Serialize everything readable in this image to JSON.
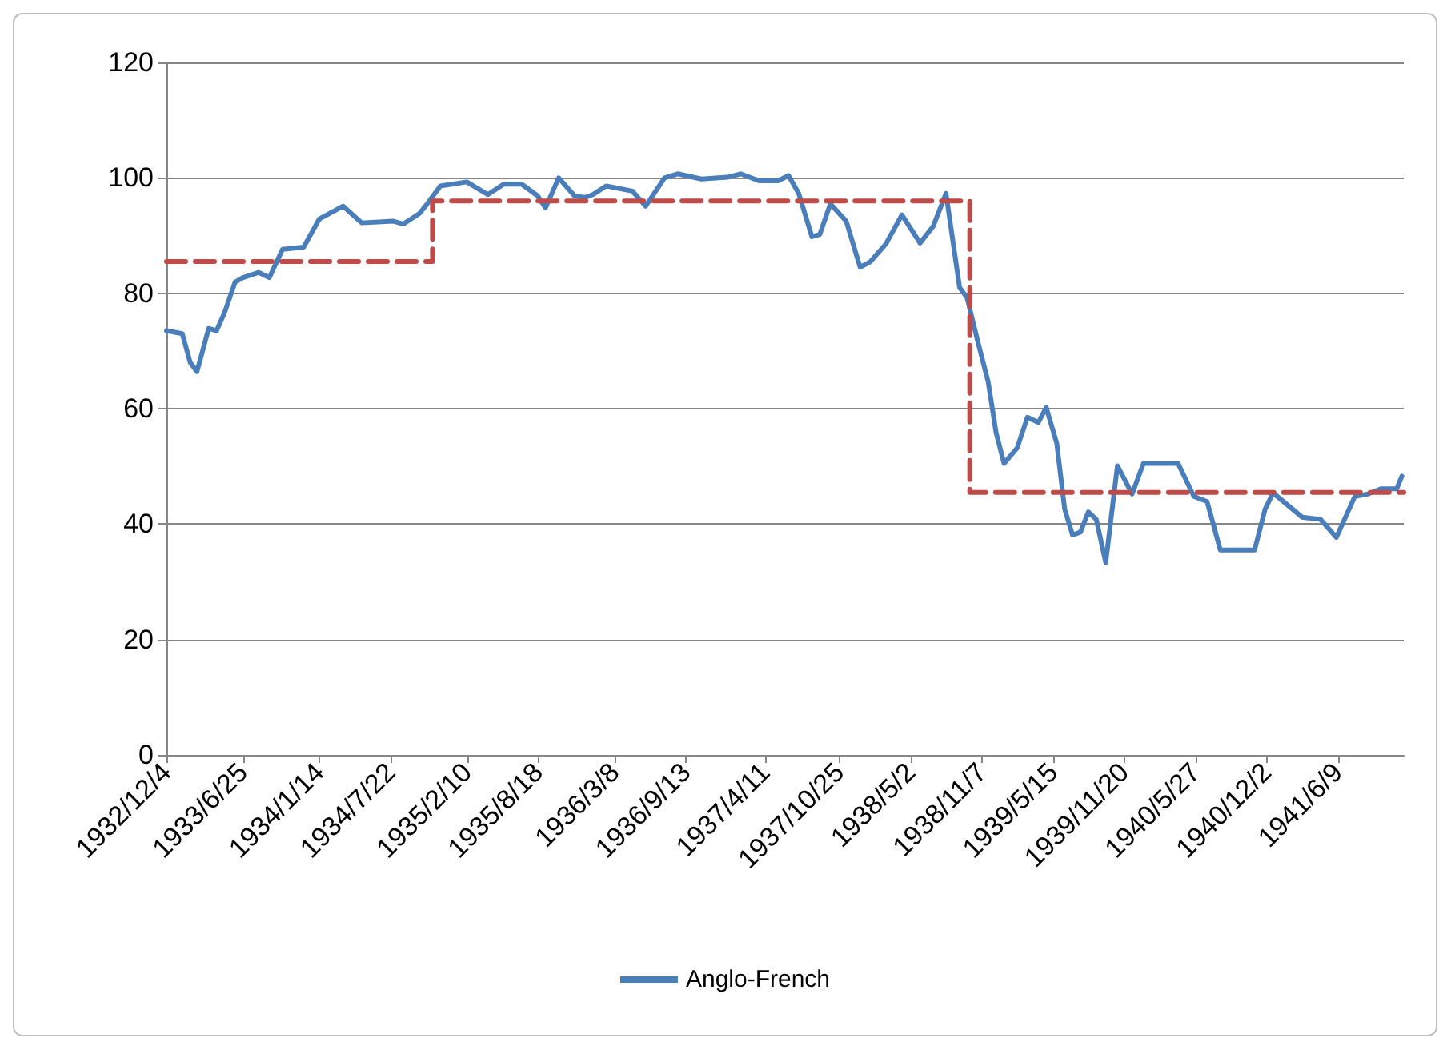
{
  "chart_data": {
    "type": "line",
    "x": [
      "1932-12-04",
      "1933-01-15",
      "1933-02-05",
      "1933-02-23",
      "1933-03-26",
      "1933-04-16",
      "1933-05-07",
      "1933-06-04",
      "1933-06-25",
      "1933-08-06",
      "1933-09-03",
      "1933-10-08",
      "1933-12-03",
      "1934-01-14",
      "1934-03-18",
      "1934-05-06",
      "1934-07-28",
      "1934-08-25",
      "1934-10-06",
      "1934-10-27",
      "1934-12-01",
      "1935-02-09",
      "1935-04-06",
      "1935-05-18",
      "1935-07-05",
      "1935-08-16",
      "1935-09-06",
      "1935-10-11",
      "1935-11-22",
      "1935-12-20",
      "1936-01-10",
      "1936-02-14",
      "1936-04-24",
      "1936-05-29",
      "1936-07-18",
      "1936-08-22",
      "1936-10-24",
      "1937-01-01",
      "1937-02-05",
      "1937-03-26",
      "1937-05-15",
      "1937-06-12",
      "1937-07-09",
      "1937-08-13",
      "1937-09-03",
      "1937-10-01",
      "1937-11-12",
      "1937-12-19",
      "1938-01-14",
      "1938-02-25",
      "1938-04-09",
      "1938-05-27",
      "1938-07-01",
      "1938-08-04",
      "1938-09-09",
      "1938-09-29",
      "1938-10-27",
      "1938-11-24",
      "1938-12-15",
      "1939-01-05",
      "1939-02-09",
      "1939-03-08",
      "1939-04-06",
      "1939-04-27",
      "1939-05-25",
      "1939-06-15",
      "1939-07-06",
      "1939-07-27",
      "1939-08-17",
      "1939-09-07",
      "1939-10-02",
      "1939-11-02",
      "1939-12-11",
      "1940-01-10",
      "1940-04-11",
      "1940-05-23",
      "1940-06-27",
      "1940-08-01",
      "1940-10-31",
      "1940-11-28",
      "1940-12-19",
      "1941-03-06",
      "1941-04-24",
      "1941-06-05",
      "1941-07-24",
      "1941-08-28",
      "1941-10-01",
      "1941-11-12",
      "1941-11-26"
    ],
    "series": [
      {
        "name": "Anglo-French",
        "color": "#4a7ebb",
        "line_style": "solid",
        "values": [
          73.5,
          73,
          68,
          66.4,
          73.9,
          73.5,
          76.6,
          81.9,
          82.7,
          83.6,
          82.7,
          87.6,
          88,
          92.9,
          95.1,
          92.2,
          92.5,
          92,
          93.8,
          95.5,
          98.6,
          99.3,
          97.1,
          98.9,
          98.9,
          96.9,
          94.8,
          100,
          96.9,
          96.6,
          97.1,
          98.6,
          97.7,
          95.1,
          100,
          100.7,
          99.8,
          100.1,
          100.7,
          99.5,
          99.5,
          100.4,
          97.3,
          89.8,
          90.2,
          95.5,
          92.5,
          84.5,
          85.4,
          88.5,
          93.6,
          88.7,
          91.6,
          97.3,
          81,
          79.2,
          71.7,
          64.6,
          55.8,
          50.5,
          53.2,
          58.5,
          57.6,
          60.2,
          54,
          42.6,
          38.1,
          38.6,
          42.1,
          40.8,
          33.3,
          50.1,
          45.2,
          50.5,
          50.5,
          44.8,
          43.9,
          35.5,
          35.5,
          42.6,
          45.4,
          41.2,
          40.8,
          37.7,
          44.8,
          45.2,
          46.1,
          46.1,
          48.3
        ]
      },
      {
        "type": "step",
        "color": "#be4b48",
        "line_style": "dashed",
        "x": [
          "1932-12-04",
          "1934-11-10",
          "1938-10-06",
          "1941-12-01"
        ],
        "values": [
          85.5,
          96,
          45.5,
          45.5
        ]
      }
    ],
    "xlim": [
      "1932-12-04",
      "1941-12-01"
    ],
    "xticks": [
      {
        "value": "1932-12-04",
        "label": "1932/12/4"
      },
      {
        "value": "1933-06-25",
        "label": "1933/6/25"
      },
      {
        "value": "1934-01-14",
        "label": "1934/1/14"
      },
      {
        "value": "1934-07-22",
        "label": "1934/7/22"
      },
      {
        "value": "1935-02-10",
        "label": "1935/2/10"
      },
      {
        "value": "1935-08-18",
        "label": "1935/8/18"
      },
      {
        "value": "1936-03-08",
        "label": "1936/3/8"
      },
      {
        "value": "1936-09-13",
        "label": "1936/9/13"
      },
      {
        "value": "1937-04-11",
        "label": "1937/4/11"
      },
      {
        "value": "1937-10-25",
        "label": "1937/10/25"
      },
      {
        "value": "1938-05-02",
        "label": "1938/5/2"
      },
      {
        "value": "1938-11-07",
        "label": "1938/11/7"
      },
      {
        "value": "1939-05-15",
        "label": "1939/5/15"
      },
      {
        "value": "1939-11-20",
        "label": "1939/11/20"
      },
      {
        "value": "1940-05-27",
        "label": "1940/5/27"
      },
      {
        "value": "1940-12-02",
        "label": "1940/12/2"
      },
      {
        "value": "1941-06-09",
        "label": "1941/6/9"
      }
    ],
    "ylim": [
      0,
      120
    ],
    "yticks": [
      0,
      20,
      40,
      60,
      80,
      100,
      120
    ],
    "grid": "y",
    "legend": "bottom",
    "marker": "none"
  }
}
